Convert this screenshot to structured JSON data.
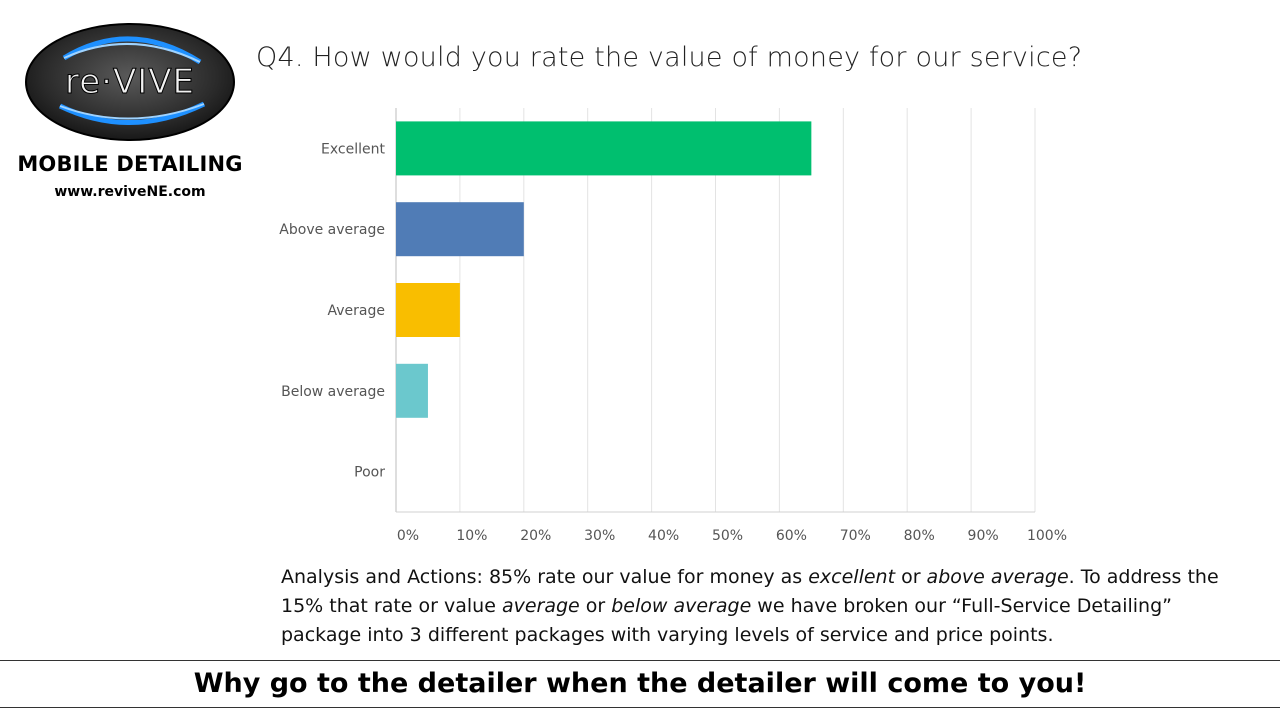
{
  "brand": {
    "logo_text": "re·VIVE",
    "subtitle": "MOBILE DETAILING",
    "url": "www.reviveNE.com"
  },
  "question": "Q4. How would you rate the value of money for our service?",
  "chart_data": {
    "type": "bar",
    "orientation": "horizontal",
    "categories": [
      "Excellent",
      "Above average",
      "Average",
      "Below average",
      "Poor"
    ],
    "values": [
      65,
      20,
      10,
      5,
      0
    ],
    "colors": [
      "#00bf6f",
      "#507cb6",
      "#f9be00",
      "#6bc8cd",
      "#d3d3d3"
    ],
    "xlim": [
      0,
      100
    ],
    "xticks": [
      "0%",
      "10%",
      "20%",
      "30%",
      "40%",
      "50%",
      "60%",
      "70%",
      "80%",
      "90%",
      "100%"
    ],
    "grid": true,
    "legend": "none"
  },
  "analysis": {
    "p1": "Analysis and Actions: 85% rate our value for money as ",
    "i1": "excellent",
    "p2": " or ",
    "i2": "above average",
    "p3": ". To address the 15% that rate or value ",
    "i3": "average",
    "p4": " or ",
    "i4": "below average",
    "p5": " we have broken our “Full-Service Detailing” package into 3 different packages with varying levels of service and price points."
  },
  "slogan": "Why go to the detailer when the detailer will come to you!"
}
